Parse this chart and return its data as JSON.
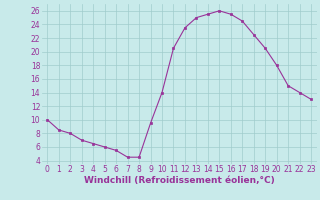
{
  "x": [
    0,
    1,
    2,
    3,
    4,
    5,
    6,
    7,
    8,
    9,
    10,
    11,
    12,
    13,
    14,
    15,
    16,
    17,
    18,
    19,
    20,
    21,
    22,
    23
  ],
  "y": [
    10,
    8.5,
    8,
    7,
    6.5,
    6,
    5.5,
    4.5,
    4.5,
    9.5,
    14,
    20.5,
    23.5,
    25,
    25.5,
    26,
    25.5,
    24.5,
    22.5,
    20.5,
    18,
    15,
    14,
    13
  ],
  "line_color": "#993399",
  "marker": "s",
  "marker_size": 2,
  "bg_color": "#c8eaea",
  "grid_color": "#a0cccc",
  "xlabel": "Windchill (Refroidissement éolien,°C)",
  "ylabel_ticks": [
    4,
    6,
    8,
    10,
    12,
    14,
    16,
    18,
    20,
    22,
    24,
    26
  ],
  "xticks": [
    0,
    1,
    2,
    3,
    4,
    5,
    6,
    7,
    8,
    9,
    10,
    11,
    12,
    13,
    14,
    15,
    16,
    17,
    18,
    19,
    20,
    21,
    22,
    23
  ],
  "ylim": [
    3.5,
    27
  ],
  "xlim": [
    -0.5,
    23.5
  ],
  "tick_label_color": "#993399",
  "tick_label_fontsize": 5.5,
  "xlabel_fontsize": 6.5,
  "xlabel_color": "#993399"
}
